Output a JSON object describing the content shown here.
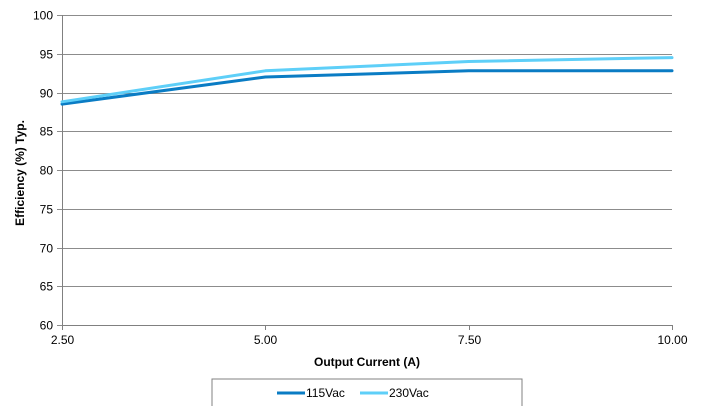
{
  "chart_data": {
    "type": "line",
    "title": "",
    "xlabel": "Output Current (A)",
    "ylabel": "Efficiency (%) Typ.",
    "x": [
      2.5,
      5.0,
      7.5,
      10.0
    ],
    "x_tick_labels": [
      "2.50",
      "5.00",
      "7.50",
      "10.00"
    ],
    "xlim": [
      2.5,
      10.0
    ],
    "ylim": [
      60,
      100
    ],
    "y_ticks": [
      60,
      65,
      70,
      75,
      80,
      85,
      90,
      95,
      100
    ],
    "y_tick_labels": [
      "60",
      "65",
      "70",
      "75",
      "80",
      "85",
      "90",
      "95",
      "100"
    ],
    "grid": true,
    "legend_position": "bottom",
    "series": [
      {
        "name": "115Vac",
        "color": "#0a7cc4",
        "values": [
          88.5,
          92.0,
          92.8,
          92.8
        ]
      },
      {
        "name": "230Vac",
        "color": "#5ecff8",
        "values": [
          88.8,
          92.8,
          94.0,
          94.5
        ]
      }
    ]
  }
}
